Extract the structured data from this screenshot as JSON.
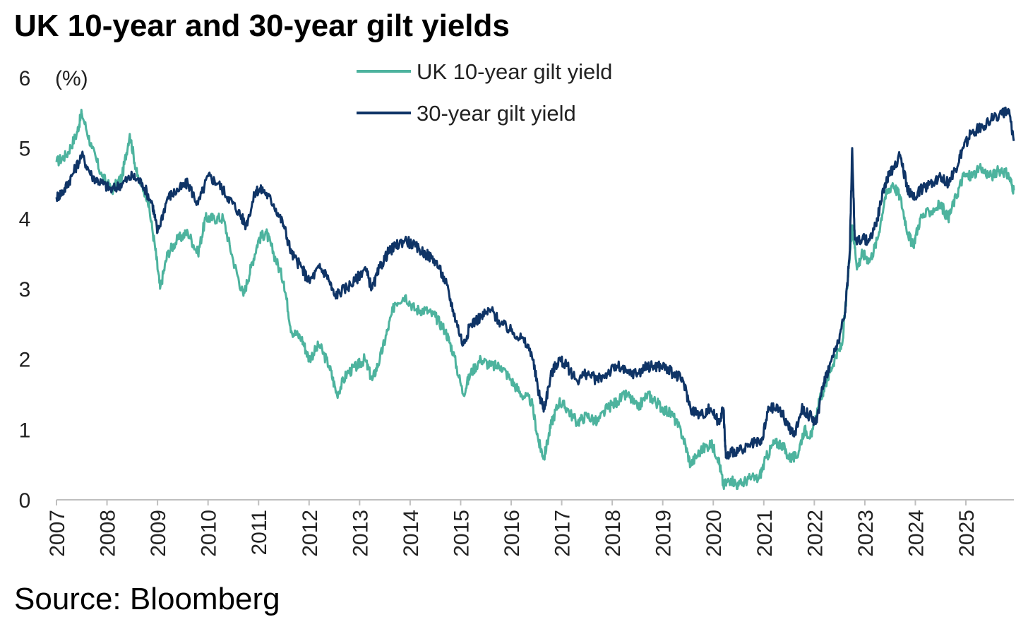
{
  "chart_data": {
    "type": "line",
    "title": "UK 10-year and 30-year gilt yields",
    "unit_label": "(%)",
    "source": "Source: Bloomberg",
    "xlabel": "",
    "ylabel": "(%)",
    "xlim": [
      2007.0,
      2025.95
    ],
    "ylim": [
      0,
      6
    ],
    "y_ticks": [
      "0",
      "1",
      "2",
      "3",
      "4",
      "5",
      "6"
    ],
    "x_ticks": [
      "2007",
      "2008",
      "2009",
      "2010",
      "2011",
      "2012",
      "2013",
      "2014",
      "2015",
      "2016",
      "2017",
      "2018",
      "2019",
      "2020",
      "2021",
      "2022",
      "2023",
      "2024",
      "2025"
    ],
    "grid": false,
    "legend_position": "top-center",
    "series": [
      {
        "name": "UK 10-year gilt yield",
        "color": "#4db39e",
        "points": [
          [
            2007.0,
            4.8
          ],
          [
            2007.2,
            4.9
          ],
          [
            2007.4,
            5.2
          ],
          [
            2007.5,
            5.5
          ],
          [
            2007.7,
            5.0
          ],
          [
            2007.9,
            4.6
          ],
          [
            2008.1,
            4.4
          ],
          [
            2008.3,
            4.6
          ],
          [
            2008.45,
            5.2
          ],
          [
            2008.6,
            4.6
          ],
          [
            2008.8,
            4.3
          ],
          [
            2008.95,
            3.6
          ],
          [
            2009.05,
            3.0
          ],
          [
            2009.2,
            3.5
          ],
          [
            2009.4,
            3.7
          ],
          [
            2009.6,
            3.8
          ],
          [
            2009.8,
            3.5
          ],
          [
            2009.95,
            4.0
          ],
          [
            2010.1,
            4.0
          ],
          [
            2010.3,
            4.0
          ],
          [
            2010.5,
            3.4
          ],
          [
            2010.7,
            2.9
          ],
          [
            2010.85,
            3.3
          ],
          [
            2011.0,
            3.7
          ],
          [
            2011.15,
            3.8
          ],
          [
            2011.3,
            3.5
          ],
          [
            2011.5,
            3.1
          ],
          [
            2011.65,
            2.4
          ],
          [
            2011.85,
            2.3
          ],
          [
            2012.0,
            2.0
          ],
          [
            2012.2,
            2.2
          ],
          [
            2012.4,
            1.9
          ],
          [
            2012.55,
            1.5
          ],
          [
            2012.75,
            1.8
          ],
          [
            2012.95,
            1.9
          ],
          [
            2013.1,
            2.0
          ],
          [
            2013.25,
            1.7
          ],
          [
            2013.4,
            2.0
          ],
          [
            2013.55,
            2.4
          ],
          [
            2013.7,
            2.8
          ],
          [
            2013.9,
            2.9
          ],
          [
            2014.1,
            2.7
          ],
          [
            2014.3,
            2.7
          ],
          [
            2014.5,
            2.6
          ],
          [
            2014.7,
            2.4
          ],
          [
            2014.85,
            2.1
          ],
          [
            2015.05,
            1.5
          ],
          [
            2015.2,
            1.8
          ],
          [
            2015.4,
            2.0
          ],
          [
            2015.6,
            1.9
          ],
          [
            2015.8,
            1.9
          ],
          [
            2016.0,
            1.7
          ],
          [
            2016.2,
            1.5
          ],
          [
            2016.4,
            1.4
          ],
          [
            2016.55,
            0.8
          ],
          [
            2016.65,
            0.6
          ],
          [
            2016.8,
            1.1
          ],
          [
            2016.95,
            1.4
          ],
          [
            2017.1,
            1.3
          ],
          [
            2017.3,
            1.1
          ],
          [
            2017.5,
            1.2
          ],
          [
            2017.7,
            1.1
          ],
          [
            2017.9,
            1.3
          ],
          [
            2018.1,
            1.4
          ],
          [
            2018.3,
            1.5
          ],
          [
            2018.5,
            1.3
          ],
          [
            2018.7,
            1.5
          ],
          [
            2018.85,
            1.4
          ],
          [
            2019.0,
            1.3
          ],
          [
            2019.2,
            1.2
          ],
          [
            2019.4,
            0.9
          ],
          [
            2019.55,
            0.5
          ],
          [
            2019.75,
            0.7
          ],
          [
            2019.95,
            0.8
          ],
          [
            2020.1,
            0.6
          ],
          [
            2020.2,
            0.2
          ],
          [
            2020.35,
            0.3
          ],
          [
            2020.5,
            0.2
          ],
          [
            2020.7,
            0.3
          ],
          [
            2020.9,
            0.3
          ],
          [
            2021.05,
            0.6
          ],
          [
            2021.2,
            0.8
          ],
          [
            2021.35,
            0.8
          ],
          [
            2021.5,
            0.6
          ],
          [
            2021.65,
            0.6
          ],
          [
            2021.8,
            1.0
          ],
          [
            2021.95,
            0.9
          ],
          [
            2022.1,
            1.4
          ],
          [
            2022.25,
            1.7
          ],
          [
            2022.4,
            2.0
          ],
          [
            2022.55,
            2.2
          ],
          [
            2022.65,
            3.0
          ],
          [
            2022.75,
            3.9
          ],
          [
            2022.85,
            3.3
          ],
          [
            2022.95,
            3.5
          ],
          [
            2023.1,
            3.4
          ],
          [
            2023.25,
            3.7
          ],
          [
            2023.4,
            4.3
          ],
          [
            2023.55,
            4.5
          ],
          [
            2023.7,
            4.3
          ],
          [
            2023.85,
            3.8
          ],
          [
            2023.95,
            3.6
          ],
          [
            2024.1,
            4.0
          ],
          [
            2024.3,
            4.1
          ],
          [
            2024.5,
            4.2
          ],
          [
            2024.65,
            4.0
          ],
          [
            2024.8,
            4.3
          ],
          [
            2024.95,
            4.6
          ],
          [
            2025.1,
            4.6
          ],
          [
            2025.3,
            4.7
          ],
          [
            2025.5,
            4.6
          ],
          [
            2025.7,
            4.7
          ],
          [
            2025.85,
            4.6
          ],
          [
            2025.95,
            4.4
          ]
        ]
      },
      {
        "name": "30-year gilt yield",
        "color": "#0f3466",
        "points": [
          [
            2007.0,
            4.3
          ],
          [
            2007.15,
            4.4
          ],
          [
            2007.3,
            4.6
          ],
          [
            2007.5,
            4.9
          ],
          [
            2007.7,
            4.6
          ],
          [
            2007.9,
            4.5
          ],
          [
            2008.1,
            4.4
          ],
          [
            2008.3,
            4.5
          ],
          [
            2008.5,
            4.6
          ],
          [
            2008.7,
            4.5
          ],
          [
            2008.9,
            4.2
          ],
          [
            2009.0,
            3.8
          ],
          [
            2009.2,
            4.3
          ],
          [
            2009.4,
            4.4
          ],
          [
            2009.6,
            4.5
          ],
          [
            2009.8,
            4.2
          ],
          [
            2010.0,
            4.6
          ],
          [
            2010.2,
            4.5
          ],
          [
            2010.4,
            4.3
          ],
          [
            2010.6,
            4.1
          ],
          [
            2010.75,
            3.9
          ],
          [
            2010.95,
            4.4
          ],
          [
            2011.1,
            4.4
          ],
          [
            2011.3,
            4.2
          ],
          [
            2011.5,
            3.9
          ],
          [
            2011.65,
            3.5
          ],
          [
            2011.85,
            3.3
          ],
          [
            2012.0,
            3.1
          ],
          [
            2012.2,
            3.3
          ],
          [
            2012.35,
            3.2
          ],
          [
            2012.5,
            2.9
          ],
          [
            2012.7,
            3.0
          ],
          [
            2012.9,
            3.1
          ],
          [
            2013.1,
            3.3
          ],
          [
            2013.25,
            3.0
          ],
          [
            2013.4,
            3.3
          ],
          [
            2013.55,
            3.5
          ],
          [
            2013.7,
            3.6
          ],
          [
            2013.9,
            3.7
          ],
          [
            2014.1,
            3.6
          ],
          [
            2014.3,
            3.5
          ],
          [
            2014.5,
            3.4
          ],
          [
            2014.7,
            3.1
          ],
          [
            2014.85,
            2.7
          ],
          [
            2015.05,
            2.2
          ],
          [
            2015.2,
            2.5
          ],
          [
            2015.4,
            2.6
          ],
          [
            2015.6,
            2.7
          ],
          [
            2015.8,
            2.5
          ],
          [
            2016.0,
            2.4
          ],
          [
            2016.2,
            2.3
          ],
          [
            2016.4,
            2.1
          ],
          [
            2016.55,
            1.5
          ],
          [
            2016.65,
            1.3
          ],
          [
            2016.8,
            1.8
          ],
          [
            2016.95,
            2.0
          ],
          [
            2017.1,
            1.9
          ],
          [
            2017.3,
            1.7
          ],
          [
            2017.5,
            1.8
          ],
          [
            2017.7,
            1.7
          ],
          [
            2017.9,
            1.8
          ],
          [
            2018.1,
            1.9
          ],
          [
            2018.3,
            1.8
          ],
          [
            2018.5,
            1.8
          ],
          [
            2018.7,
            1.9
          ],
          [
            2018.85,
            1.9
          ],
          [
            2019.0,
            1.9
          ],
          [
            2019.2,
            1.8
          ],
          [
            2019.4,
            1.7
          ],
          [
            2019.55,
            1.3
          ],
          [
            2019.75,
            1.2
          ],
          [
            2019.95,
            1.3
          ],
          [
            2020.1,
            1.1
          ],
          [
            2020.2,
            1.3
          ],
          [
            2020.25,
            0.6
          ],
          [
            2020.4,
            0.7
          ],
          [
            2020.6,
            0.7
          ],
          [
            2020.8,
            0.8
          ],
          [
            2020.95,
            0.8
          ],
          [
            2021.1,
            1.3
          ],
          [
            2021.3,
            1.3
          ],
          [
            2021.45,
            1.1
          ],
          [
            2021.6,
            0.9
          ],
          [
            2021.75,
            1.3
          ],
          [
            2021.9,
            1.2
          ],
          [
            2022.05,
            1.1
          ],
          [
            2022.15,
            1.6
          ],
          [
            2022.3,
            1.9
          ],
          [
            2022.45,
            2.2
          ],
          [
            2022.6,
            2.6
          ],
          [
            2022.7,
            3.5
          ],
          [
            2022.75,
            5.0
          ],
          [
            2022.8,
            3.7
          ],
          [
            2022.95,
            3.7
          ],
          [
            2023.1,
            3.7
          ],
          [
            2023.25,
            4.0
          ],
          [
            2023.4,
            4.5
          ],
          [
            2023.55,
            4.7
          ],
          [
            2023.7,
            4.9
          ],
          [
            2023.85,
            4.4
          ],
          [
            2023.95,
            4.3
          ],
          [
            2024.1,
            4.4
          ],
          [
            2024.3,
            4.5
          ],
          [
            2024.5,
            4.6
          ],
          [
            2024.65,
            4.5
          ],
          [
            2024.8,
            4.7
          ],
          [
            2024.95,
            5.0
          ],
          [
            2025.1,
            5.2
          ],
          [
            2025.3,
            5.3
          ],
          [
            2025.5,
            5.4
          ],
          [
            2025.7,
            5.5
          ],
          [
            2025.85,
            5.5
          ],
          [
            2025.95,
            5.1
          ]
        ]
      }
    ]
  }
}
